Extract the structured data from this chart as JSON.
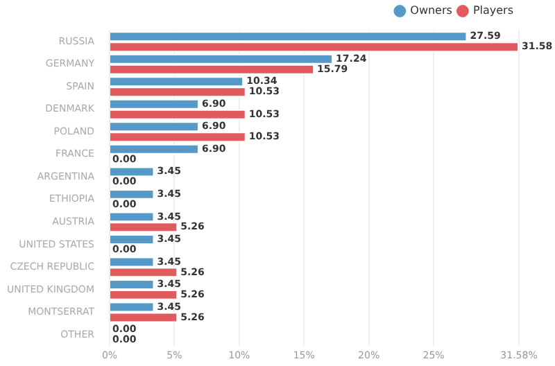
{
  "chart_data": {
    "type": "bar",
    "orientation": "horizontal",
    "categories": [
      "RUSSIA",
      "GERMANY",
      "SPAIN",
      "DENMARK",
      "POLAND",
      "FRANCE",
      "ARGENTINA",
      "ETHIOPIA",
      "AUSTRIA",
      "UNITED STATES",
      "CZECH REPUBLIC",
      "UNITED KINGDOM",
      "MONTSERRAT",
      "OTHER"
    ],
    "series": [
      {
        "name": "Owners",
        "color": "#5499c7",
        "values": [
          27.59,
          17.24,
          10.34,
          6.9,
          6.9,
          6.9,
          3.45,
          3.45,
          3.45,
          3.45,
          3.45,
          3.45,
          3.45,
          0.0
        ],
        "value_labels": [
          "27.59",
          "17.24",
          "10.34",
          "6.90",
          "6.90",
          "6.90",
          "3.45",
          "3.45",
          "3.45",
          "3.45",
          "3.45",
          "3.45",
          "3.45",
          "0.00"
        ]
      },
      {
        "name": "Players",
        "color": "#e05a5e",
        "values": [
          31.58,
          15.79,
          10.53,
          10.53,
          10.53,
          0.0,
          0.0,
          0.0,
          5.26,
          0.0,
          5.26,
          5.26,
          5.26,
          0.0
        ],
        "value_labels": [
          "31.58",
          "15.79",
          "10.53",
          "10.53",
          "10.53",
          "0.00",
          "0.00",
          "0.00",
          "5.26",
          "0.00",
          "5.26",
          "5.26",
          "5.26",
          "0.00"
        ]
      }
    ],
    "xlim": [
      0,
      31.58
    ],
    "xticks": [
      {
        "value": 0,
        "label": "0%"
      },
      {
        "value": 5,
        "label": "5%"
      },
      {
        "value": 10,
        "label": "10%"
      },
      {
        "value": 15,
        "label": "15%"
      },
      {
        "value": 20,
        "label": "20%"
      },
      {
        "value": 25,
        "label": "25%"
      },
      {
        "value": 31.58,
        "label": "31.58%"
      }
    ],
    "grid": "x",
    "legend": "top right"
  }
}
